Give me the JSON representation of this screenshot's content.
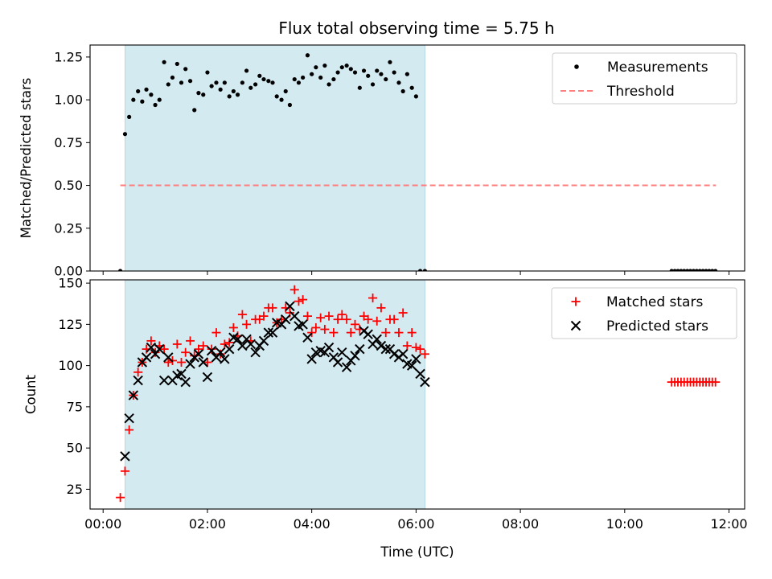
{
  "title": "Flux total observing time = 5.75 h",
  "chart_data": [
    {
      "type": "scatter",
      "ylabel": "Matched/Predicted stars",
      "ylim": [
        0,
        1.32
      ],
      "yticks": [
        0,
        0.25,
        0.5,
        0.75,
        1.0,
        1.25
      ],
      "ytick_labels": [
        "0.00",
        "0.25",
        "0.50",
        "0.75",
        "1.00",
        "1.25"
      ],
      "xlim": [
        -0.25,
        12.3
      ],
      "shaded_span": [
        0.42,
        6.17
      ],
      "shade_color": "#d3eaf1",
      "legend": {
        "position": "top-right",
        "entries": [
          "Measurements",
          "Threshold"
        ]
      },
      "threshold": {
        "name": "Threshold",
        "y": 0.5,
        "x_range": [
          0.33,
          11.75
        ],
        "color": "#ff7f7f"
      },
      "series": [
        {
          "name": "Measurements",
          "marker": "dot",
          "color": "#000000",
          "x": [
            0.33,
            0.42,
            0.5,
            0.58,
            0.67,
            0.75,
            0.83,
            0.92,
            1.0,
            1.08,
            1.17,
            1.25,
            1.33,
            1.42,
            1.5,
            1.58,
            1.67,
            1.75,
            1.83,
            1.92,
            2.0,
            2.08,
            2.17,
            2.25,
            2.33,
            2.42,
            2.5,
            2.58,
            2.67,
            2.75,
            2.83,
            2.92,
            3.0,
            3.08,
            3.17,
            3.25,
            3.33,
            3.42,
            3.5,
            3.58,
            3.67,
            3.75,
            3.83,
            3.92,
            4.0,
            4.08,
            4.17,
            4.25,
            4.33,
            4.42,
            4.5,
            4.58,
            4.67,
            4.75,
            4.83,
            4.92,
            5.0,
            5.08,
            5.17,
            5.25,
            5.33,
            5.42,
            5.5,
            5.58,
            5.67,
            5.75,
            5.83,
            5.92,
            6.0,
            6.08,
            6.17,
            10.9,
            10.96,
            11.02,
            11.08,
            11.14,
            11.2,
            11.26,
            11.32,
            11.38,
            11.44,
            11.5,
            11.56,
            11.62,
            11.68,
            11.74
          ],
          "y": [
            0.0,
            0.8,
            0.9,
            1.0,
            1.05,
            0.99,
            1.06,
            1.03,
            0.97,
            1.0,
            1.22,
            1.09,
            1.13,
            1.21,
            1.1,
            1.18,
            1.11,
            0.94,
            1.04,
            1.03,
            1.16,
            1.08,
            1.1,
            1.06,
            1.1,
            1.02,
            1.05,
            1.03,
            1.1,
            1.17,
            1.07,
            1.09,
            1.14,
            1.12,
            1.11,
            1.1,
            1.02,
            1.0,
            1.05,
            0.97,
            1.12,
            1.1,
            1.13,
            1.26,
            1.15,
            1.19,
            1.13,
            1.2,
            1.09,
            1.12,
            1.16,
            1.19,
            1.2,
            1.18,
            1.16,
            1.07,
            1.17,
            1.14,
            1.09,
            1.17,
            1.15,
            1.12,
            1.22,
            1.16,
            1.1,
            1.05,
            1.15,
            1.07,
            1.02,
            0.0,
            0.0,
            0.0,
            0.0,
            0.0,
            0.0,
            0.0,
            0.0,
            0.0,
            0.0,
            0.0,
            0.0,
            0.0,
            0.0,
            0.0,
            0.0,
            0.0
          ]
        }
      ]
    },
    {
      "type": "scatter",
      "xlabel": "Time (UTC)",
      "ylabel": "Count",
      "ylim": [
        13,
        152
      ],
      "yticks": [
        25,
        50,
        75,
        100,
        125,
        150
      ],
      "ytick_labels": [
        "25",
        "50",
        "75",
        "100",
        "125",
        "150"
      ],
      "xlim": [
        -0.25,
        12.3
      ],
      "xticks": [
        0,
        2,
        4,
        6,
        8,
        10,
        12
      ],
      "xtick_labels": [
        "00:00",
        "02:00",
        "04:00",
        "06:00",
        "08:00",
        "10:00",
        "12:00"
      ],
      "shaded_span": [
        0.42,
        6.17
      ],
      "shade_color": "#d3eaf1",
      "legend": {
        "position": "top-right",
        "entries": [
          "Matched stars",
          "Predicted stars"
        ]
      },
      "series": [
        {
          "name": "Matched stars",
          "marker": "plus",
          "color": "#ff0000",
          "x": [
            0.33,
            0.42,
            0.5,
            0.58,
            0.67,
            0.75,
            0.83,
            0.92,
            1.0,
            1.08,
            1.17,
            1.25,
            1.33,
            1.42,
            1.5,
            1.58,
            1.67,
            1.75,
            1.83,
            1.92,
            2.0,
            2.08,
            2.17,
            2.25,
            2.33,
            2.42,
            2.5,
            2.58,
            2.67,
            2.75,
            2.83,
            2.92,
            3.0,
            3.08,
            3.17,
            3.25,
            3.33,
            3.42,
            3.5,
            3.58,
            3.67,
            3.75,
            3.83,
            3.92,
            4.0,
            4.08,
            4.17,
            4.25,
            4.33,
            4.42,
            4.5,
            4.58,
            4.67,
            4.75,
            4.83,
            4.92,
            5.0,
            5.08,
            5.17,
            5.25,
            5.33,
            5.42,
            5.5,
            5.58,
            5.67,
            5.75,
            5.83,
            5.92,
            6.0,
            6.08,
            6.17,
            10.9,
            10.96,
            11.02,
            11.08,
            11.14,
            11.2,
            11.26,
            11.32,
            11.38,
            11.44,
            11.5,
            11.56,
            11.62,
            11.68,
            11.74
          ],
          "y": [
            20,
            36,
            61,
            82,
            96,
            102,
            110,
            115,
            108,
            112,
            110,
            102,
            103,
            113,
            102,
            108,
            115,
            106,
            110,
            112,
            102,
            110,
            120,
            107,
            113,
            114,
            123,
            118,
            131,
            125,
            115,
            128,
            128,
            130,
            135,
            135,
            126,
            128,
            135,
            132,
            146,
            139,
            140,
            130,
            120,
            123,
            129,
            122,
            130,
            120,
            128,
            131,
            128,
            120,
            125,
            122,
            130,
            128,
            141,
            127,
            135,
            120,
            128,
            128,
            120,
            132,
            112,
            120,
            111,
            110,
            107,
            90,
            90,
            90,
            90,
            90,
            90,
            90,
            90,
            90,
            90,
            90,
            90,
            90,
            90,
            90
          ]
        },
        {
          "name": "Predicted stars",
          "marker": "x",
          "color": "#000000",
          "x": [
            0.42,
            0.5,
            0.58,
            0.67,
            0.75,
            0.83,
            0.92,
            1.0,
            1.08,
            1.17,
            1.25,
            1.33,
            1.42,
            1.5,
            1.58,
            1.67,
            1.75,
            1.83,
            1.92,
            2.0,
            2.08,
            2.17,
            2.25,
            2.33,
            2.42,
            2.5,
            2.58,
            2.67,
            2.75,
            2.83,
            2.92,
            3.0,
            3.08,
            3.17,
            3.25,
            3.33,
            3.42,
            3.5,
            3.58,
            3.67,
            3.75,
            3.83,
            3.92,
            4.0,
            4.08,
            4.17,
            4.25,
            4.33,
            4.42,
            4.5,
            4.58,
            4.67,
            4.75,
            4.83,
            4.92,
            5.0,
            5.08,
            5.17,
            5.25,
            5.33,
            5.42,
            5.5,
            5.58,
            5.67,
            5.75,
            5.83,
            5.92,
            6.0,
            6.08,
            6.17
          ],
          "y": [
            45,
            68,
            82,
            91,
            102,
            105,
            111,
            107,
            110,
            91,
            105,
            91,
            94,
            95,
            90,
            101,
            105,
            107,
            102,
            93,
            109,
            105,
            108,
            104,
            110,
            117,
            116,
            112,
            116,
            113,
            108,
            112,
            115,
            120,
            120,
            126,
            125,
            128,
            136,
            130,
            124,
            125,
            117,
            104,
            108,
            109,
            108,
            111,
            105,
            102,
            108,
            99,
            103,
            106,
            110,
            121,
            119,
            113,
            116,
            112,
            110,
            110,
            107,
            105,
            107,
            101,
            100,
            104,
            95,
            90
          ]
        }
      ]
    }
  ]
}
